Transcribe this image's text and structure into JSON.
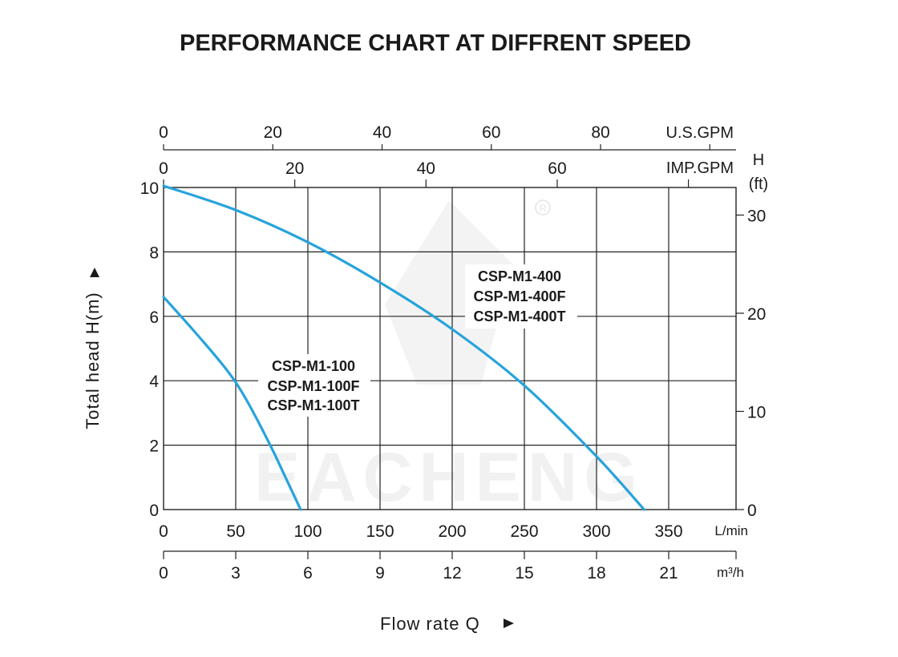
{
  "chart_data": {
    "type": "line",
    "title": "PERFORMANCE CHART AT DIFFRENT SPEED",
    "xlabel": "Flow rate  Q",
    "ylabel": "Total  head H(m)",
    "xlim": [
      0,
      400
    ],
    "ylim": [
      0,
      10
    ],
    "grid": true,
    "watermark": "EACHENG",
    "colors": {
      "curve": "#27a3dc",
      "axis": "#222222",
      "text": "#1a1a1a"
    },
    "axes": {
      "left": {
        "unit": "",
        "ticks": [
          "0",
          "2",
          "4",
          "6",
          "8",
          "10"
        ],
        "values": [
          0,
          2,
          4,
          6,
          8,
          10
        ]
      },
      "right": {
        "unit": "H",
        "unit2": "(ft)",
        "ticks": [
          "0",
          "10",
          "20",
          "30"
        ],
        "values": [
          0,
          10,
          20,
          30
        ]
      },
      "bottom": {
        "unit": "L/min",
        "ticks": [
          "0",
          "50",
          "100",
          "150",
          "200",
          "250",
          "300",
          "350"
        ],
        "values": [
          0,
          50,
          100,
          150,
          200,
          250,
          300,
          350
        ]
      },
      "bottom2": {
        "unit": "m³/h",
        "ticks": [
          "0",
          "3",
          "6",
          "9",
          "12",
          "15",
          "18",
          "21"
        ],
        "values": [
          0,
          3,
          6,
          9,
          12,
          15,
          18,
          21
        ]
      },
      "top_imp": {
        "unit": "IMP.GPM",
        "ticks": [
          "0",
          "20",
          "40",
          "60"
        ],
        "values": [
          0,
          20,
          40,
          60
        ]
      },
      "top_us": {
        "unit": "U.S.GPM",
        "ticks": [
          "0",
          "20",
          "40",
          "60",
          "80"
        ],
        "values": [
          0,
          20,
          40,
          60,
          80
        ]
      }
    },
    "series": [
      {
        "labels": [
          "CSP-M1-100",
          "CSP-M1-100F",
          "CSP-M1-100T"
        ],
        "x": [
          0,
          20,
          40,
          50,
          60,
          75,
          85,
          95
        ],
        "y": [
          6.6,
          5.6,
          4.55,
          3.95,
          3.2,
          1.9,
          0.95,
          0
        ]
      },
      {
        "labels": [
          "CSP-M1-400",
          "CSP-M1-400F",
          "CSP-M1-400T"
        ],
        "x": [
          0,
          50,
          100,
          150,
          200,
          250,
          300,
          333
        ],
        "y": [
          10.05,
          9.3,
          8.3,
          7.05,
          5.6,
          3.85,
          1.65,
          0
        ]
      }
    ]
  }
}
